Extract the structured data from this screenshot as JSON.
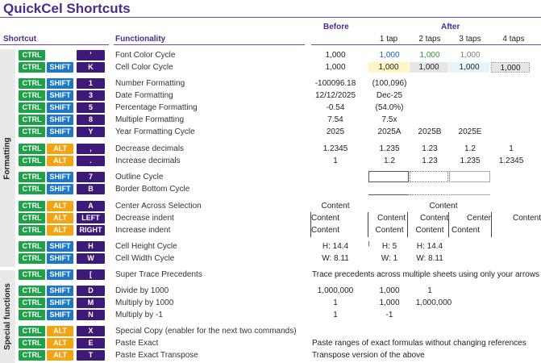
{
  "title": "QuickCel Shortcuts",
  "headers": {
    "shortcut": "Shortcut",
    "functionality": "Functionality",
    "before": "Before",
    "after": "After",
    "taps": [
      "1 tap",
      "2 taps",
      "3 taps",
      "4 taps"
    ]
  },
  "sections": {
    "formatting": "Formatting",
    "special": "Special functions"
  },
  "colors": {
    "ctrl": "#1fa14a",
    "shift": "#1e78c8",
    "alt": "#f2a413",
    "key_letter": "#3d1a78",
    "accent": "#4b2d8c",
    "font_blue": "#1e5fd0",
    "font_green": "#2e9a3a",
    "font_gray": "#808080",
    "cell_yellow": "#fff5c4",
    "cell_gray": "#e6e6e6",
    "cell_cyan": "#e3f6fb"
  },
  "rows": [
    {
      "keys": [
        "CTRL",
        "",
        "'"
      ],
      "func": "Font Color Cycle",
      "before": "1,000",
      "t1": "1,000",
      "t2": "1,000",
      "t3": "1,000",
      "t4": ""
    },
    {
      "keys": [
        "CTRL",
        "SHIFT",
        "K"
      ],
      "func": "Cell Color Cycle",
      "before": "1,000",
      "t1": "1,000",
      "t2": "1,000",
      "t3": "1,000",
      "t4": "1,000"
    },
    {
      "keys": [
        "CTRL",
        "SHIFT",
        "1"
      ],
      "func": "Number Formatting",
      "before": "-100096.18",
      "t1": "(100,096)",
      "t2": "",
      "t3": "",
      "t4": ""
    },
    {
      "keys": [
        "CTRL",
        "SHIFT",
        "3"
      ],
      "func": "Date Formatting",
      "before": "12/12/2025",
      "t1": "Dec-25",
      "t2": "",
      "t3": "",
      "t4": ""
    },
    {
      "keys": [
        "CTRL",
        "SHIFT",
        "5"
      ],
      "func": "Percentage Formatting",
      "before": "-0.54",
      "t1": "(54.0%)",
      "t2": "",
      "t3": "",
      "t4": ""
    },
    {
      "keys": [
        "CTRL",
        "SHIFT",
        "8"
      ],
      "func": "Multiple Formatting",
      "before": "7.54",
      "t1": "7.5x",
      "t2": "",
      "t3": "",
      "t4": ""
    },
    {
      "keys": [
        "CTRL",
        "SHIFT",
        "Y"
      ],
      "func": "Year Formatting Cycle",
      "before": "2025",
      "t1": "2025A",
      "t2": "2025B",
      "t3": "2025E",
      "t4": ""
    },
    {
      "keys": [
        "CTRL",
        "ALT",
        ","
      ],
      "func": "Decrease decimals",
      "before": "1.2345",
      "t1": "1.235",
      "t2": "1.23",
      "t3": "1.2",
      "t4": "1"
    },
    {
      "keys": [
        "CTRL",
        "ALT",
        "."
      ],
      "func": "Increase decimals",
      "before": "1",
      "t1": "1.2",
      "t2": "1.23",
      "t3": "1.235",
      "t4": "1.2345"
    },
    {
      "keys": [
        "CTRL",
        "SHIFT",
        "7"
      ],
      "func": "Outline Cycle",
      "before": "",
      "t1": "",
      "t2": "",
      "t3": "",
      "t4": ""
    },
    {
      "keys": [
        "CTRL",
        "SHIFT",
        "B"
      ],
      "func": "Border Bottom Cycle",
      "before": "",
      "t1": "",
      "t2": "",
      "t3": "",
      "t4": ""
    },
    {
      "keys": [
        "CTRL",
        "ALT",
        "A"
      ],
      "func": "Center Across Selection",
      "before": "Content",
      "t1": "",
      "t2": "Content",
      "t3": "",
      "t4": ""
    },
    {
      "keys": [
        "CTRL",
        "ALT",
        "LEFT"
      ],
      "func": "Decrease indent",
      "before": "Content",
      "t1": "Content",
      "t2": "Content",
      "t3": "Center",
      "t4": "Content"
    },
    {
      "keys": [
        "CTRL",
        "ALT",
        "RIGHT"
      ],
      "func": "Increase indent",
      "before": "Content",
      "t1": "Content",
      "t2": "Content",
      "t3": "Content",
      "t4": ""
    },
    {
      "keys": [
        "CTRL",
        "SHIFT",
        "H"
      ],
      "func": "Cell Height Cycle",
      "before": "H: 14.4",
      "t1": "H: 5",
      "t2": "H: 14.4",
      "t3": "",
      "t4": ""
    },
    {
      "keys": [
        "CTRL",
        "SHIFT",
        "W"
      ],
      "func": "Cell Width Cycle",
      "before": "W: 8.11",
      "t1": "W: 1",
      "t2": "W: 8.11",
      "t3": "",
      "t4": ""
    },
    {
      "keys": [
        "CTRL",
        "SHIFT",
        "["
      ],
      "func": "Super Trace Precedents",
      "long": "Trace precedents across multiple sheets using only your arrows"
    },
    {
      "keys": [
        "CTRL",
        "SHIFT",
        "D"
      ],
      "func": "Divide by 1000",
      "before": "1,000,000",
      "t1": "1,000",
      "t2": "1",
      "t3": "",
      "t4": ""
    },
    {
      "keys": [
        "CTRL",
        "SHIFT",
        "M"
      ],
      "func": "Multiply by 1000",
      "before": "1",
      "t1": "1,000",
      "t2": "1,000,000",
      "t3": "",
      "t4": ""
    },
    {
      "keys": [
        "CTRL",
        "SHIFT",
        "N"
      ],
      "func": "Multiply by -1",
      "before": "1",
      "t1": "-1",
      "t2": "",
      "t3": "",
      "t4": ""
    },
    {
      "keys": [
        "CTRL",
        "ALT",
        "X"
      ],
      "func": "Special Copy (enabler for the next two commands)",
      "long": ""
    },
    {
      "keys": [
        "CTRL",
        "ALT",
        "E"
      ],
      "func": "Paste Exact",
      "long": "Paste ranges of exact formulas without changing references"
    },
    {
      "keys": [
        "CTRL",
        "ALT",
        "T"
      ],
      "func": "Paste Exact Transpose",
      "long": "Transpose version of the above"
    }
  ]
}
